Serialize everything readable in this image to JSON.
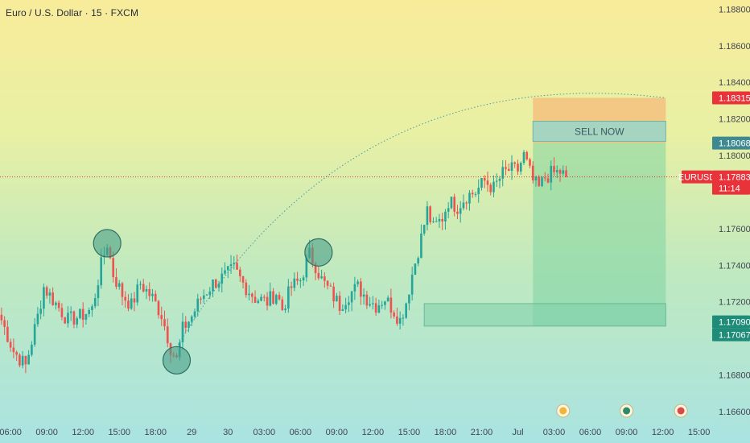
{
  "chart_title": "Euro / U.S. Dollar · 15 · FXCM",
  "chart_data": {
    "type": "candlestick",
    "symbol": "EURUSD",
    "y_ticks": [
      "1.18800",
      "1.18600",
      "1.18400",
      "1.18200",
      "1.18000",
      "1.17600",
      "1.17400",
      "1.17200",
      "1.16800",
      "1.16600"
    ],
    "y_tick_values": [
      1.188,
      1.186,
      1.184,
      1.182,
      1.18,
      1.176,
      1.174,
      1.172,
      1.168,
      1.166
    ],
    "ylim": [
      1.1656,
      1.1885
    ],
    "x_ticks": [
      "06:00",
      "09:00",
      "12:00",
      "15:00",
      "18:00",
      "29",
      "30",
      "03:00",
      "06:00",
      "09:00",
      "12:00",
      "15:00",
      "18:00",
      "21:00",
      "Jul",
      "03:00",
      "06:00",
      "09:00",
      "12:00",
      "15:00"
    ],
    "x_tick_index": [
      3,
      15,
      27,
      39,
      51,
      63,
      75,
      87,
      99,
      111,
      123,
      135,
      147,
      159,
      171,
      183,
      195,
      207,
      219,
      231
    ],
    "n_slots": 234,
    "ohlc_anchors": [
      [
        0,
        1.171
      ],
      [
        4,
        1.1693
      ],
      [
        8,
        1.1685
      ],
      [
        12,
        1.1712
      ],
      [
        14,
        1.1728
      ],
      [
        18,
        1.1719
      ],
      [
        22,
        1.171
      ],
      [
        26,
        1.1712
      ],
      [
        30,
        1.1716
      ],
      [
        33,
        1.174
      ],
      [
        35,
        1.1752
      ],
      [
        37,
        1.1735
      ],
      [
        40,
        1.1724
      ],
      [
        43,
        1.1718
      ],
      [
        46,
        1.173
      ],
      [
        50,
        1.1722
      ],
      [
        53,
        1.1713
      ],
      [
        56,
        1.1695
      ],
      [
        58,
        1.1688
      ],
      [
        60,
        1.1705
      ],
      [
        63,
        1.1712
      ],
      [
        66,
        1.1722
      ],
      [
        70,
        1.173
      ],
      [
        74,
        1.1734
      ],
      [
        77,
        1.1738
      ],
      [
        80,
        1.173
      ],
      [
        84,
        1.1722
      ],
      [
        88,
        1.172
      ],
      [
        91,
        1.1725
      ],
      [
        93,
        1.1716
      ],
      [
        96,
        1.1728
      ],
      [
        99,
        1.1732
      ],
      [
        102,
        1.1746
      ],
      [
        104,
        1.174
      ],
      [
        106,
        1.1732
      ],
      [
        109,
        1.1725
      ],
      [
        112,
        1.1718
      ],
      [
        115,
        1.1724
      ],
      [
        118,
        1.1728
      ],
      [
        121,
        1.1722
      ],
      [
        124,
        1.1718
      ],
      [
        127,
        1.1722
      ],
      [
        130,
        1.1715
      ],
      [
        132,
        1.171
      ],
      [
        134,
        1.172
      ],
      [
        136,
        1.1735
      ],
      [
        139,
        1.1755
      ],
      [
        141,
        1.177
      ],
      [
        143,
        1.176
      ],
      [
        146,
        1.1766
      ],
      [
        148,
        1.1775
      ],
      [
        151,
        1.1772
      ],
      [
        154,
        1.1778
      ],
      [
        157,
        1.178
      ],
      [
        160,
        1.1786
      ],
      [
        163,
        1.1782
      ],
      [
        166,
        1.179
      ],
      [
        168,
        1.1792
      ],
      [
        171,
        1.1792
      ],
      [
        173,
        1.18
      ],
      [
        176,
        1.1786
      ],
      [
        178,
        1.1782
      ],
      [
        180,
        1.1788
      ],
      [
        182,
        1.179
      ],
      [
        185,
        1.1791
      ],
      [
        187,
        1.17883
      ]
    ],
    "last_price": "1.17883",
    "countdown": "11:14",
    "price_tags": [
      {
        "label": "1.18315",
        "value": 1.18315,
        "color": "#e8333b"
      },
      {
        "label": "1.18068",
        "value": 1.18068,
        "color": "#3e8a90"
      },
      {
        "label": "1.17090",
        "value": 1.1709,
        "color": "#1e8c78"
      },
      {
        "label": "1.17067",
        "value": 1.17067,
        "color": "#1e8c78"
      }
    ],
    "position": {
      "type": "short",
      "label": "SELL NOW",
      "entry": 1.18068,
      "stop": 1.18315,
      "target": 1.17067,
      "start_slot": 176,
      "end_slot": 220,
      "stop_color": "#f5b97a",
      "profit_color": "#7fd3a2"
    },
    "support_zone": {
      "from": 1.17067,
      "to": 1.1719,
      "start_slot": 140,
      "end_slot": 220
    },
    "circles": [
      {
        "slot": 35,
        "price": 1.1752,
        "shape": "circle",
        "state": "swing-high"
      },
      {
        "slot": 58,
        "price": 1.1688,
        "shape": "circle",
        "state": "swing-low"
      },
      {
        "slot": 105,
        "price": 1.1747,
        "shape": "circle",
        "state": "swing-high"
      }
    ],
    "arc": {
      "from_slot": 58,
      "from_price": 1.1695,
      "to_slot": 220,
      "to_price": 1.18315
    },
    "event_icons": [
      {
        "slot": 186,
        "kind": "lightning-icon"
      },
      {
        "slot": 207,
        "kind": "flag-icon"
      },
      {
        "slot": 225,
        "kind": "us-flag-icon"
      }
    ],
    "colors": {
      "up": "#26a69a",
      "down": "#ef5350",
      "grid": "none"
    }
  }
}
